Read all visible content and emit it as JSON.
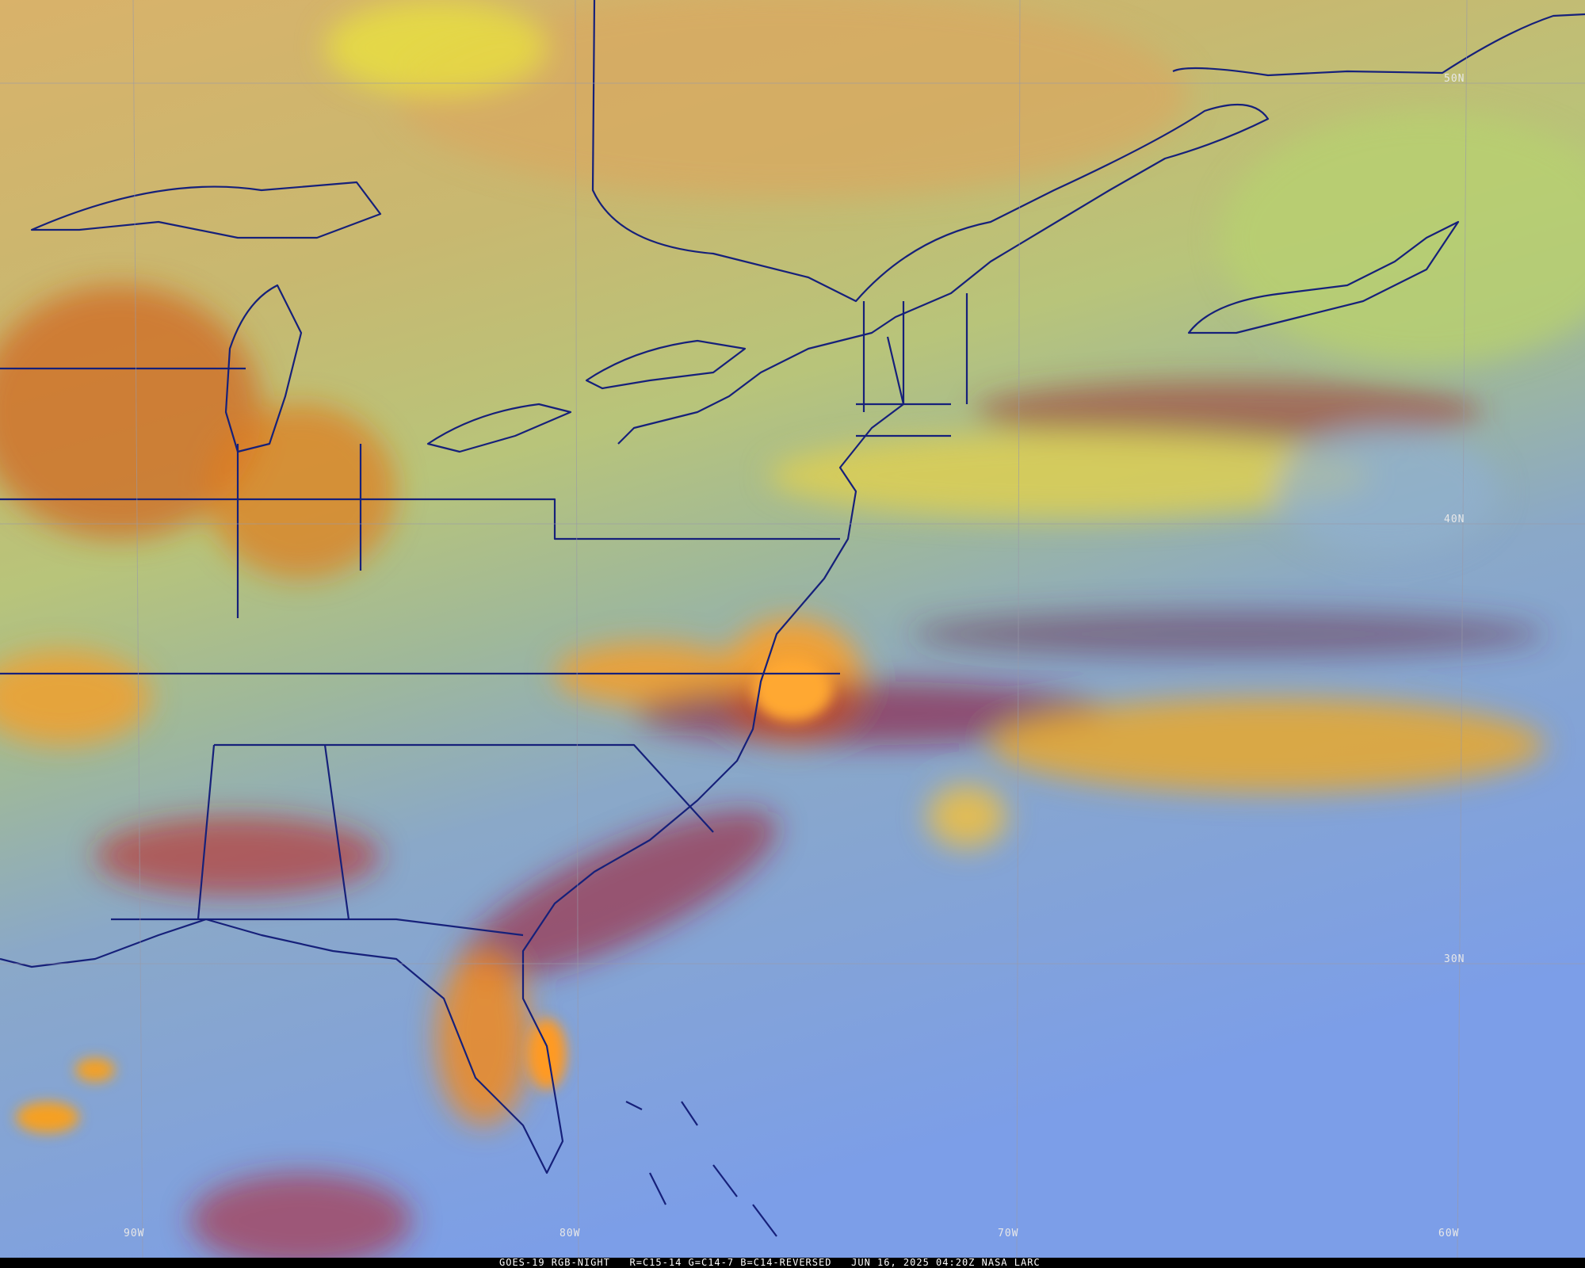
{
  "graticule": {
    "latitude_labels": [
      "50N",
      "40N",
      "30N"
    ],
    "longitude_labels": [
      "90W",
      "80W",
      "70W",
      "60W"
    ]
  },
  "footer": "GOES-19 RGB-NIGHT   R=C15-14 G=C14-7 B=C14-REVERSED   JUN 16, 2025 04:20Z NASA LARC"
}
